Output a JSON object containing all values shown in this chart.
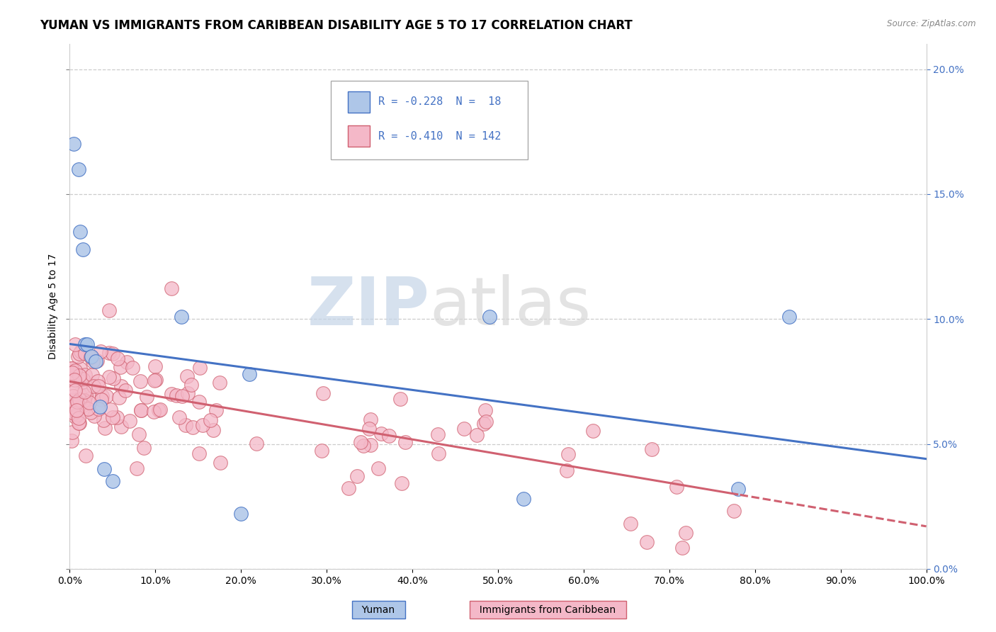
{
  "title": "YUMAN VS IMMIGRANTS FROM CARIBBEAN DISABILITY AGE 5 TO 17 CORRELATION CHART",
  "source": "Source: ZipAtlas.com",
  "ylabel": "Disability Age 5 to 17",
  "xlim": [
    0.0,
    1.0
  ],
  "ylim": [
    0.0,
    0.21
  ],
  "xticks": [
    0.0,
    0.1,
    0.2,
    0.3,
    0.4,
    0.5,
    0.6,
    0.7,
    0.8,
    0.9,
    1.0
  ],
  "yticks": [
    0.0,
    0.05,
    0.1,
    0.15,
    0.2
  ],
  "yuman_color": "#aec6e8",
  "yuman_edge_color": "#4472c4",
  "carib_color": "#f4b8c8",
  "carib_edge_color": "#d06070",
  "yuman_line_color": "#4472c4",
  "carib_line_color": "#d06070",
  "legend_R_yuman": "R = -0.228",
  "legend_N_yuman": "N =  18",
  "legend_R_carib": "R = -0.410",
  "legend_N_carib": "N = 142",
  "watermark_zip": "ZIP",
  "watermark_atlas": "atlas",
  "title_fontsize": 12,
  "axis_label_fontsize": 10,
  "tick_fontsize": 10,
  "right_tick_color": "#4472c4",
  "yuman_intercept": 0.09,
  "yuman_slope": -0.046,
  "carib_intercept": 0.075,
  "carib_slope": -0.058
}
